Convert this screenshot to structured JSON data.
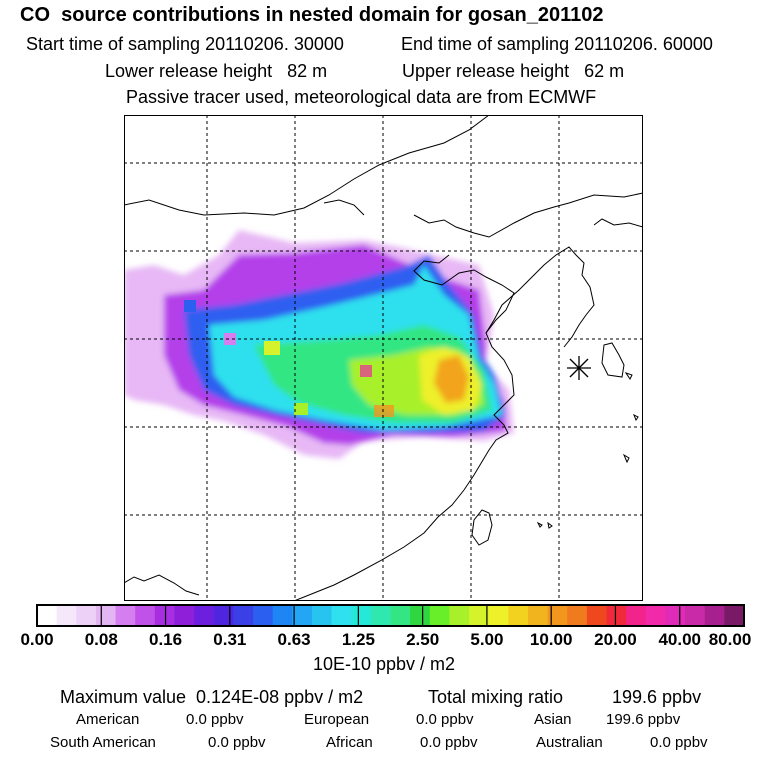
{
  "header": {
    "title": "CO  source contributions in nested domain for gosan_201102",
    "start_label": "Start time of sampling 20110206. 30000",
    "end_label": "End time of sampling 20110206. 60000",
    "lower_label": "Lower release height   82 m",
    "upper_label": "Upper release height   62 m",
    "tracer_label": "Passive tracer used, meteorological data are from ECMWF"
  },
  "chart_data": {
    "type": "heatmap",
    "title": "CO  source contributions in nested domain for gosan_201102",
    "colorbar": {
      "tick_labels": [
        "0.00",
        "0.08",
        "0.16",
        "0.31",
        "0.63",
        "1.25",
        "2.50",
        "5.00",
        "10.00",
        "20.00",
        "40.00",
        "80.00"
      ],
      "colors": [
        "#ffffff",
        "#f6e8fb",
        "#eed1f7",
        "#e4b5f3",
        "#d57ef0",
        "#c052ea",
        "#a82ee2",
        "#8f1fd9",
        "#6d1fe0",
        "#5025e0",
        "#3a3fe6",
        "#2a5ff0",
        "#1e86f4",
        "#23a6f3",
        "#28c4f0",
        "#2fe0ee",
        "#25e8d8",
        "#2fe8b0",
        "#33e683",
        "#2fd63f",
        "#69ee2a",
        "#a8f02a",
        "#d6f22a",
        "#eef02a",
        "#f2d21e",
        "#f2b41e",
        "#f2961e",
        "#f07a1e",
        "#f0481e",
        "#f02a3a",
        "#f2238a",
        "#f02aa8",
        "#e02ab8",
        "#c82aa8",
        "#a8208f",
        "#7a1a66"
      ],
      "unit": "10E-10 ppbv / m2"
    },
    "source_marker": "Gosan (asterisk)",
    "grid": true
  },
  "stats": {
    "max_label": "Maximum value  0.124E-08 ppbv / m2",
    "total_label": "Total mixing ratio",
    "total_value": "199.6 ppbv"
  },
  "regions": [
    {
      "name": "American",
      "value": "0.0 ppbv"
    },
    {
      "name": "European",
      "value": "0.0 ppbv"
    },
    {
      "name": "Asian",
      "value": "199.6 ppbv"
    },
    {
      "name": "South American",
      "value": "0.0 ppbv"
    },
    {
      "name": "African",
      "value": "0.0 ppbv"
    },
    {
      "name": "Australian",
      "value": "0.0 ppbv"
    }
  ]
}
